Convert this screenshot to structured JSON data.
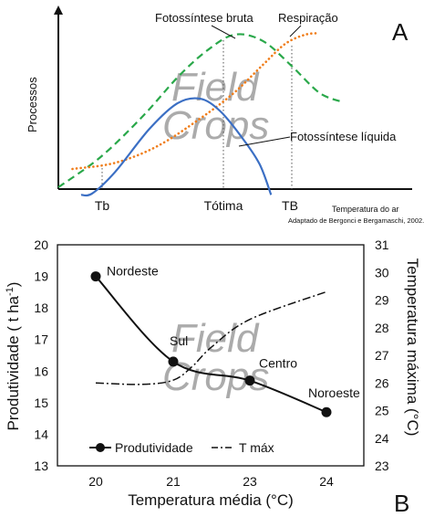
{
  "chart_data": [
    {
      "panel": "A",
      "type": "line",
      "ylabel": "Processos",
      "xlabel": "Temperatura do ar",
      "source_note": "Adaptado de Bergonci e Bergamaschi, 2002.",
      "xticks": [
        "Tb",
        "Tótima",
        "TB"
      ],
      "series": [
        {
          "name": "Fotossíntese bruta",
          "style": "dashed",
          "color": "#2aa84a",
          "points": [
            [
              0.0,
              0.0
            ],
            [
              0.15,
              0.2
            ],
            [
              0.3,
              0.47
            ],
            [
              0.42,
              0.72
            ],
            [
              0.52,
              0.89
            ],
            [
              0.62,
              1.0
            ],
            [
              0.72,
              0.96
            ],
            [
              0.82,
              0.8
            ],
            [
              0.92,
              0.62
            ],
            [
              1.0,
              0.56
            ]
          ]
        },
        {
          "name": "Respiração",
          "style": "dotted",
          "color": "#f07d1a",
          "points": [
            [
              0.05,
              0.12
            ],
            [
              0.2,
              0.16
            ],
            [
              0.35,
              0.27
            ],
            [
              0.5,
              0.45
            ],
            [
              0.62,
              0.62
            ],
            [
              0.72,
              0.8
            ],
            [
              0.8,
              0.94
            ],
            [
              0.87,
              1.0
            ],
            [
              0.92,
              1.01
            ]
          ]
        },
        {
          "name": "Fotossíntese líquida",
          "style": "solid",
          "color": "#3b6fc4",
          "points": [
            [
              0.08,
              -0.05
            ],
            [
              0.12,
              -0.04
            ],
            [
              0.2,
              0.1
            ],
            [
              0.32,
              0.38
            ],
            [
              0.42,
              0.55
            ],
            [
              0.5,
              0.58
            ],
            [
              0.57,
              0.5
            ],
            [
              0.65,
              0.32
            ],
            [
              0.71,
              0.15
            ],
            [
              0.75,
              -0.05
            ]
          ]
        }
      ]
    },
    {
      "panel": "B",
      "type": "line",
      "xlabel": "Temperatura média (°C)",
      "ylabel": "Produtividade ( t ha-1)",
      "ylabel_main": "Produtividade ( t ha",
      "ylabel_sup": "-1",
      "ylabel_end": ")",
      "y2label": "Temperatura máxima (°C)",
      "xlim": [
        20,
        24
      ],
      "xticks": [
        "20",
        "21",
        "23",
        "24"
      ],
      "ylim": [
        13,
        20
      ],
      "yticks": [
        "13",
        "14",
        "15",
        "16",
        "17",
        "18",
        "19",
        "20"
      ],
      "y2lim": [
        23,
        31
      ],
      "y2ticks": [
        "23",
        "24",
        "25",
        "26",
        "27",
        "28",
        "29",
        "30",
        "31"
      ],
      "legend": {
        "position": "bottom-left",
        "entries": [
          "Produtividade",
          "T máx"
        ]
      },
      "series": [
        {
          "name": "Produtividade",
          "style": "solid",
          "marker": "circle",
          "axis": "left",
          "x": [
            20,
            21,
            23,
            24
          ],
          "y": [
            19.0,
            16.3,
            15.7,
            14.7
          ],
          "point_labels": [
            "Nordeste",
            "Sul",
            "Centro",
            "Noroeste"
          ]
        },
        {
          "name": "T máx",
          "style": "dashdot",
          "axis": "right",
          "x": [
            20,
            20.6,
            21,
            21.5,
            22,
            23,
            24
          ],
          "y": [
            26.0,
            25.95,
            26.1,
            26.6,
            27.3,
            28.3,
            29.3
          ]
        }
      ]
    }
  ],
  "panel_labels": [
    "A",
    "B"
  ],
  "watermark": {
    "line1": "Field",
    "line2": "Crops"
  }
}
